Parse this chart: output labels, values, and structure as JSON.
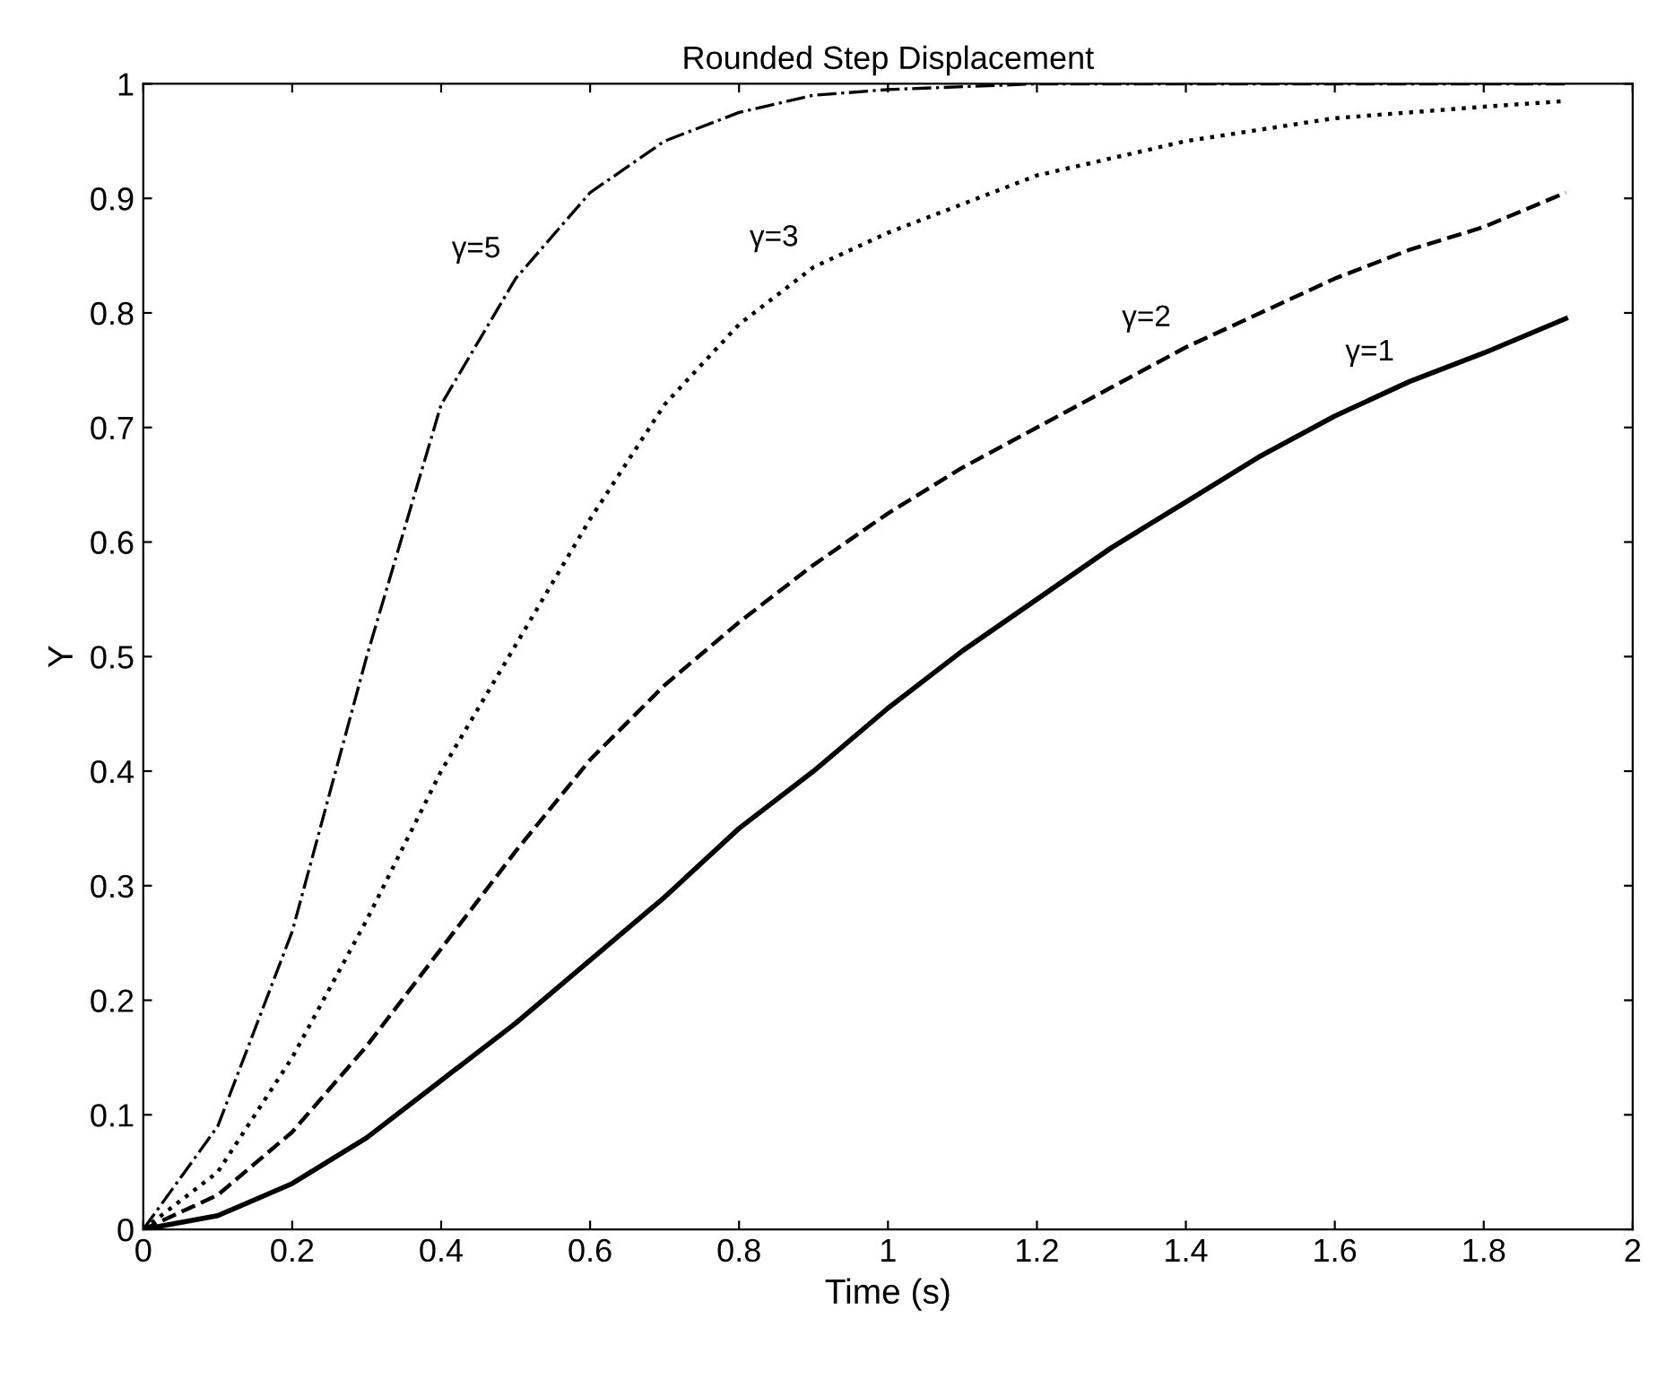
{
  "chart_data": {
    "type": "line",
    "title": "Rounded Step Displacement",
    "xlabel": "Time (s)",
    "ylabel": "Y",
    "xlim": [
      0,
      2
    ],
    "ylim": [
      0,
      1
    ],
    "xticks": [
      0,
      0.2,
      0.4,
      0.6,
      0.8,
      1,
      1.2,
      1.4,
      1.6,
      1.8,
      2
    ],
    "yticks": [
      0,
      0.1,
      0.2,
      0.3,
      0.4,
      0.5,
      0.6,
      0.7,
      0.8,
      0.9,
      1
    ],
    "grid": false,
    "legend": false,
    "marker": "none",
    "series": [
      {
        "color": "#000000",
        "line_style": "solid",
        "x": [
          0,
          0.1,
          0.2,
          0.3,
          0.4,
          0.5,
          0.6,
          0.7,
          0.8,
          0.9,
          1.0,
          1.1,
          1.2,
          1.3,
          1.4,
          1.5,
          1.6,
          1.7,
          1.8,
          1.91
        ],
        "values": [
          0,
          0.012,
          0.04,
          0.08,
          0.13,
          0.18,
          0.235,
          0.29,
          0.35,
          0.4,
          0.455,
          0.505,
          0.55,
          0.595,
          0.635,
          0.675,
          0.71,
          0.74,
          0.765,
          0.795
        ]
      },
      {
        "color": "#000000",
        "line_style": "dashed",
        "x": [
          0,
          0.1,
          0.2,
          0.3,
          0.4,
          0.5,
          0.6,
          0.7,
          0.8,
          0.9,
          1.0,
          1.1,
          1.2,
          1.3,
          1.4,
          1.5,
          1.6,
          1.7,
          1.8,
          1.91
        ],
        "values": [
          0,
          0.03,
          0.085,
          0.16,
          0.245,
          0.33,
          0.41,
          0.475,
          0.53,
          0.58,
          0.625,
          0.665,
          0.7,
          0.735,
          0.77,
          0.8,
          0.83,
          0.855,
          0.875,
          0.905
        ]
      },
      {
        "color": "#000000",
        "line_style": "dotted",
        "x": [
          0,
          0.1,
          0.2,
          0.3,
          0.4,
          0.5,
          0.6,
          0.7,
          0.8,
          0.9,
          1.0,
          1.2,
          1.4,
          1.6,
          1.8,
          1.91
        ],
        "values": [
          0,
          0.05,
          0.15,
          0.27,
          0.4,
          0.51,
          0.62,
          0.72,
          0.79,
          0.84,
          0.87,
          0.92,
          0.95,
          0.97,
          0.98,
          0.985
        ]
      },
      {
        "color": "#000000",
        "line_style": "dashdot",
        "x": [
          0,
          0.1,
          0.2,
          0.3,
          0.4,
          0.5,
          0.6,
          0.7,
          0.8,
          0.9,
          1.0,
          1.2,
          1.5,
          1.91
        ],
        "values": [
          0,
          0.09,
          0.26,
          0.5,
          0.72,
          0.83,
          0.905,
          0.95,
          0.975,
          0.99,
          0.995,
          1.0,
          1.0,
          1.0
        ]
      }
    ],
    "annotations": [
      {
        "text": "γ=5",
        "x": 0.5,
        "y": 0.83
      },
      {
        "text": "γ=3",
        "x": 0.9,
        "y": 0.84
      },
      {
        "text": "γ=2",
        "x": 1.4,
        "y": 0.77
      },
      {
        "text": "γ=1",
        "x": 1.7,
        "y": 0.74
      }
    ]
  }
}
